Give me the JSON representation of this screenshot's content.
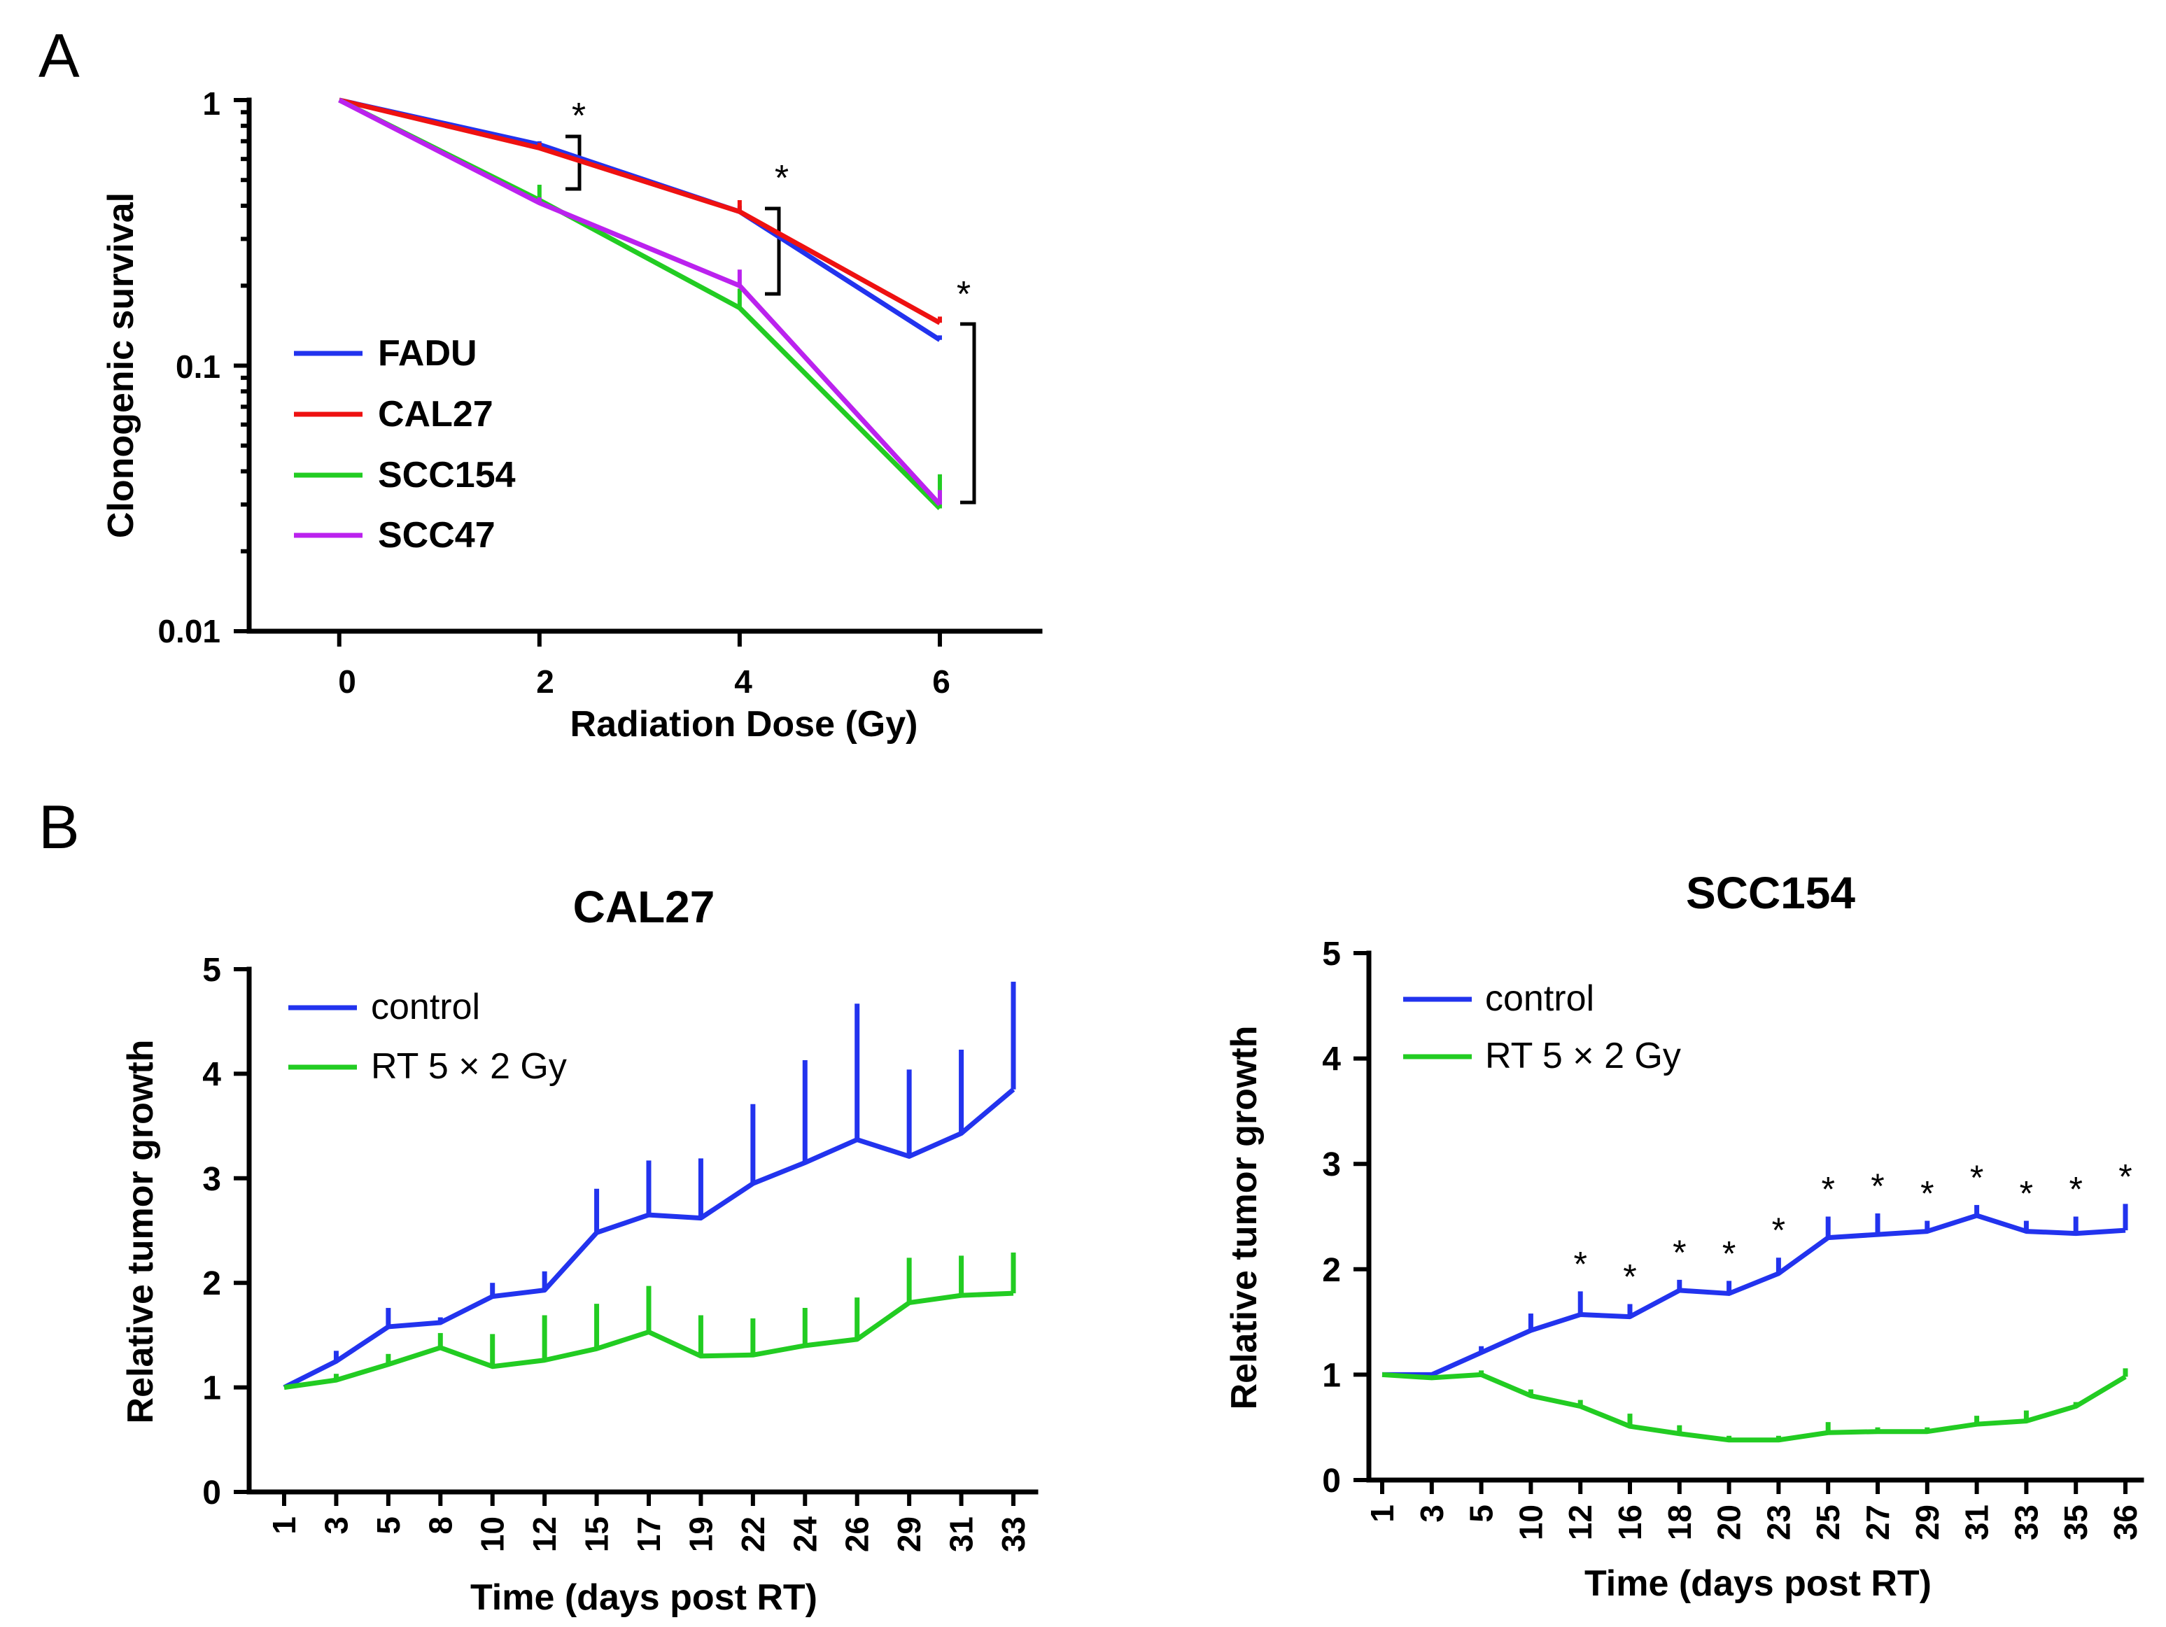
{
  "figure": {
    "panel_a_label": "A",
    "panel_b_label": "B"
  },
  "chart_data": [
    {
      "type": "line",
      "panel": "A",
      "title": "",
      "xlabel": "Radiation Dose (Gy)",
      "ylabel": "Clonogenic survival",
      "yscale": "log",
      "xlim": [
        -0.9,
        7
      ],
      "ylim": [
        0.01,
        1
      ],
      "x": [
        0,
        2,
        4,
        6
      ],
      "x_tick_labels": [
        "0",
        "2",
        "4",
        "6"
      ],
      "y_tick_labels": [
        "0.01",
        "0.1",
        "1"
      ],
      "legend_position": "center-left",
      "series": [
        {
          "name": "FADU",
          "color": "#2233ee",
          "values": [
            1.0,
            0.68,
            0.38,
            0.125
          ],
          "err": [
            0,
            0.02,
            0.02,
            0.005
          ]
        },
        {
          "name": "CAL27",
          "color": "#ee1111",
          "values": [
            1.0,
            0.66,
            0.38,
            0.145
          ],
          "err": [
            0,
            0.03,
            0.04,
            0.008
          ]
        },
        {
          "name": "SCC154",
          "color": "#22cc22",
          "values": [
            1.0,
            0.42,
            0.165,
            0.029
          ],
          "err": [
            0,
            0.06,
            0.03,
            0.01
          ]
        },
        {
          "name": "SCC47",
          "color": "#bb22ee",
          "values": [
            1.0,
            0.41,
            0.2,
            0.03
          ],
          "err": [
            0,
            0.02,
            0.03,
            0.004
          ]
        }
      ],
      "annotations": [
        "*",
        "*",
        "*"
      ]
    },
    {
      "type": "line",
      "panel": "B-left",
      "title": "CAL27",
      "xlabel": "Time (days post RT)",
      "ylabel": "Relative tumor growth",
      "ylim": [
        0,
        5
      ],
      "y_tick_labels": [
        "0",
        "1",
        "2",
        "3",
        "4",
        "5"
      ],
      "categories": [
        "1",
        "3",
        "5",
        "8",
        "10",
        "12",
        "15",
        "17",
        "19",
        "22",
        "24",
        "26",
        "29",
        "31",
        "33"
      ],
      "legend_position": "top-left",
      "series": [
        {
          "name": "control",
          "color": "#2233ee",
          "values": [
            1.0,
            1.25,
            1.58,
            1.62,
            1.87,
            1.93,
            2.48,
            2.65,
            2.62,
            2.95,
            3.15,
            3.37,
            3.21,
            3.43,
            3.85
          ],
          "err": [
            0,
            0.1,
            0.18,
            0.05,
            0.13,
            0.18,
            0.42,
            0.52,
            0.57,
            0.76,
            0.98,
            1.3,
            0.83,
            0.8,
            1.03
          ]
        },
        {
          "name": "RT 5 × 2 Gy",
          "color": "#22cc22",
          "values": [
            1.0,
            1.07,
            1.22,
            1.38,
            1.2,
            1.26,
            1.37,
            1.53,
            1.3,
            1.31,
            1.4,
            1.46,
            1.81,
            1.88,
            1.9
          ],
          "err": [
            0,
            0.06,
            0.1,
            0.14,
            0.31,
            0.43,
            0.43,
            0.44,
            0.39,
            0.35,
            0.36,
            0.4,
            0.43,
            0.38,
            0.39
          ]
        }
      ]
    },
    {
      "type": "line",
      "panel": "B-right",
      "title": "SCC154",
      "xlabel": "Time (days post RT)",
      "ylabel": "Relative tumor growth",
      "ylim": [
        0,
        5
      ],
      "y_tick_labels": [
        "0",
        "1",
        "2",
        "3",
        "4",
        "5"
      ],
      "categories": [
        "1",
        "3",
        "5",
        "10",
        "12",
        "16",
        "18",
        "20",
        "23",
        "25",
        "27",
        "29",
        "31",
        "33",
        "35",
        "36"
      ],
      "legend_position": "top-left",
      "series": [
        {
          "name": "control",
          "color": "#2233ee",
          "values": [
            1.0,
            1.0,
            1.21,
            1.42,
            1.57,
            1.55,
            1.8,
            1.77,
            1.96,
            2.3,
            2.33,
            2.36,
            2.51,
            2.36,
            2.34,
            2.37
          ],
          "err": [
            0,
            0.02,
            0.06,
            0.16,
            0.22,
            0.12,
            0.1,
            0.12,
            0.15,
            0.2,
            0.2,
            0.1,
            0.1,
            0.1,
            0.16,
            0.25
          ]
        },
        {
          "name": "RT 5 × 2 Gy",
          "color": "#22cc22",
          "values": [
            1.0,
            0.97,
            1.0,
            0.8,
            0.7,
            0.51,
            0.44,
            0.38,
            0.38,
            0.45,
            0.46,
            0.46,
            0.53,
            0.56,
            0.7,
            0.98
          ],
          "err": [
            0,
            0.02,
            0.04,
            0.06,
            0.06,
            0.12,
            0.08,
            0.04,
            0.04,
            0.1,
            0.04,
            0.04,
            0.08,
            0.1,
            0.04,
            0.08
          ]
        }
      ],
      "significance_marker": "*",
      "significant_categories": [
        "12",
        "16",
        "18",
        "20",
        "23",
        "25",
        "27",
        "29",
        "31",
        "33",
        "35",
        "36"
      ]
    }
  ]
}
